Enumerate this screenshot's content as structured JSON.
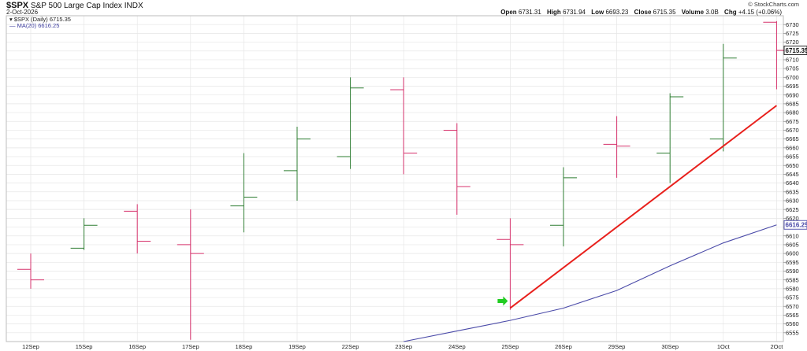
{
  "header": {
    "symbol": "$SPX",
    "name": "S&P 500 Large Cap Index",
    "exchange": "INDX",
    "date": "2-Oct-2026",
    "credit": "© StockCharts.com",
    "ohlc": {
      "open_label": "Open",
      "open": "6731.31",
      "high_label": "High",
      "high": "6731.94",
      "low_label": "Low",
      "low": "6693.23",
      "close_label": "Close",
      "close": "6715.35",
      "volume_label": "Volume",
      "volume": "3.0B",
      "chg_label": "Chg",
      "chg": "+4.15 (+0.06%)"
    }
  },
  "legend": {
    "price": "$SPX (Daily) 6715.35",
    "ma": "MA(20) 6616.25"
  },
  "colors": {
    "up": "#2e7d32",
    "down": "#d6336c",
    "ma": "#4a4aa8",
    "trend": "#e8201c",
    "arrow": "#22cc22",
    "grid": "#e6e6e6"
  },
  "chart_data": {
    "type": "ohlc",
    "ylim": [
      6550,
      6735
    ],
    "y_ticks": [
      6555,
      6560,
      6565,
      6570,
      6575,
      6580,
      6585,
      6590,
      6595,
      6600,
      6605,
      6610,
      6615,
      6620,
      6625,
      6630,
      6635,
      6640,
      6645,
      6650,
      6655,
      6660,
      6665,
      6670,
      6675,
      6680,
      6685,
      6690,
      6695,
      6700,
      6705,
      6710,
      6715,
      6720,
      6725,
      6730
    ],
    "categories": [
      "12Sep",
      "15Sep",
      "16Sep",
      "17Sep",
      "18Sep",
      "19Sep",
      "22Sep",
      "23Sep",
      "24Sep",
      "25Sep",
      "26Sep",
      "29Sep",
      "30Sep",
      "1Oct",
      "2Oct"
    ],
    "ohlc": [
      {
        "o": 6591,
        "h": 6600,
        "l": 6580,
        "c": 6585
      },
      {
        "o": 6603,
        "h": 6620,
        "l": 6602,
        "c": 6616
      },
      {
        "o": 6624,
        "h": 6628,
        "l": 6600,
        "c": 6607
      },
      {
        "o": 6605,
        "h": 6625,
        "l": 6551,
        "c": 6600
      },
      {
        "o": 6627,
        "h": 6657,
        "l": 6612,
        "c": 6632
      },
      {
        "o": 6647,
        "h": 6672,
        "l": 6630,
        "c": 6665
      },
      {
        "o": 6655,
        "h": 6700,
        "l": 6648,
        "c": 6694
      },
      {
        "o": 6693,
        "h": 6700,
        "l": 6645,
        "c": 6657
      },
      {
        "o": 6670,
        "h": 6674,
        "l": 6622,
        "c": 6638
      },
      {
        "o": 6608,
        "h": 6620,
        "l": 6568,
        "c": 6605
      },
      {
        "o": 6616,
        "h": 6649,
        "l": 6604,
        "c": 6643
      },
      {
        "o": 6662,
        "h": 6678,
        "l": 6643,
        "c": 6661
      },
      {
        "o": 6657,
        "h": 6691,
        "l": 6640,
        "c": 6689
      },
      {
        "o": 6665,
        "h": 6719,
        "l": 6658,
        "c": 6711
      },
      {
        "o": 6731.31,
        "h": 6731.94,
        "l": 6693.23,
        "c": 6715.35
      }
    ],
    "ma20": [
      null,
      null,
      null,
      null,
      null,
      null,
      null,
      6550,
      6556,
      6562,
      6569,
      6579,
      6593,
      6606,
      6616.25
    ],
    "trendline": {
      "from": {
        "x": "25Sep",
        "y": 6569
      },
      "to": {
        "x": "2Oct",
        "y": 6684
      }
    },
    "marker": {
      "x": "25Sep",
      "y": 6573
    },
    "price_tags": [
      {
        "value": 6715.35,
        "label": "6715.35",
        "style": "close"
      },
      {
        "value": 6616.25,
        "label": "6616.25",
        "style": "ma"
      }
    ]
  }
}
